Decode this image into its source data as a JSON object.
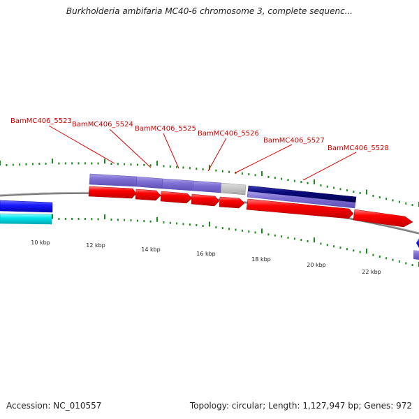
{
  "title": "Burkholderia ambifaria MC40-6 chromosome 3, complete sequenc...",
  "accession_text": "Accession: NC_010557",
  "summary_text": "Topology: circular; Length: 1,127,947 bp; Genes: 972",
  "ruler": {
    "tick_labels": [
      "10 kbp",
      "12 kbp",
      "14 kbp",
      "16 kbp",
      "18 kbp",
      "20 kbp",
      "22 kbp"
    ]
  },
  "gene_labels": [
    "BamMC406_5523",
    "BamMC406_5524",
    "BamMC406_5525",
    "BamMC406_5526",
    "BamMC406_5527",
    "BamMC406_5528"
  ],
  "colors": {
    "cds_red": "#ff0000",
    "cog_purple": "#7f6fd4",
    "cog_navy": "#0a0a7a",
    "cog_gray": "#c0c0c0",
    "blue": "#1a1aff",
    "cyan": "#00e5ee",
    "tick_green": "#1a8a1a",
    "backbone_gray": "#808080",
    "label_red": "#cc0000"
  }
}
